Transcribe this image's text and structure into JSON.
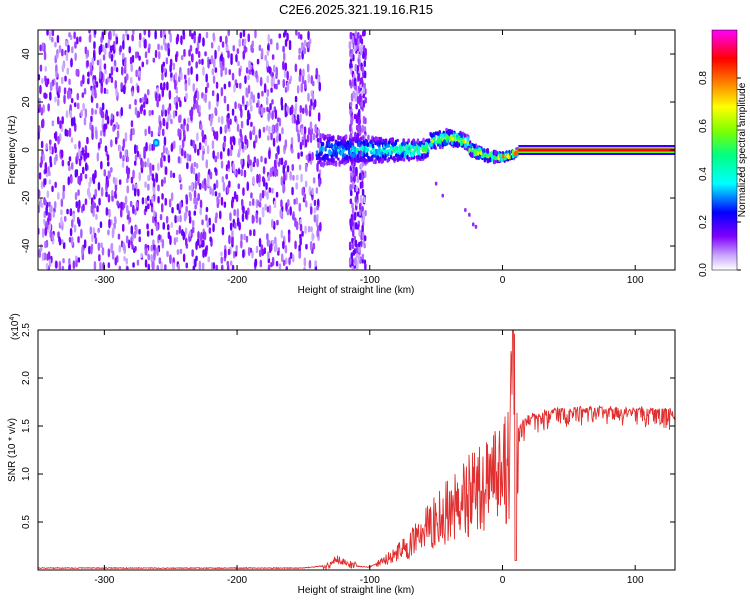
{
  "title": "C2E6.2025.321.19.16.R15",
  "chart_data": [
    {
      "type": "heatmap",
      "name": "spectrogram",
      "xlabel": "Height of straight line (km)",
      "ylabel": "Frequency (Hz)",
      "xlim": [
        -350,
        130
      ],
      "ylim": [
        -50,
        50
      ],
      "xticks": [
        -300,
        -200,
        -100,
        0,
        100
      ],
      "xtick_labels": [
        "-300",
        "-200",
        "-100",
        "0",
        "100"
      ],
      "yticks": [
        -40,
        -20,
        0,
        20,
        40
      ],
      "ytick_labels": [
        "-40",
        "-20",
        "0",
        "20",
        "40"
      ],
      "colorbar": {
        "label": "Normalized spectral amplitude",
        "range": [
          0,
          1
        ],
        "ticks": [
          0.0,
          0.2,
          0.4,
          0.6,
          0.8
        ],
        "tick_labels": [
          "0.0",
          "0.2",
          "0.4",
          "0.6",
          "0.8"
        ],
        "colors": [
          "#ffffff",
          "#8000ff",
          "#0000ff",
          "#00ffff",
          "#00ff00",
          "#ffff00",
          "#ff8000",
          "#ff0000",
          "#ff00ff"
        ]
      },
      "features": {
        "noise_region_x": [
          -350,
          -137
        ],
        "noise_band_x": [
          -115,
          -103
        ],
        "signal_start_x": -140,
        "steady_line_start_x": 12,
        "steady_line_freq": 0
      }
    },
    {
      "type": "line",
      "name": "snr",
      "xlabel": "Height of straight line (km)",
      "ylabel": "SNR (10 * v/v)",
      "multiplier_label": "(x10",
      "multiplier_exponent": "4",
      "xlim": [
        -350,
        130
      ],
      "ylim": [
        0,
        2.5
      ],
      "xticks": [
        -300,
        -200,
        -100,
        0,
        100
      ],
      "xtick_labels": [
        "-300",
        "-200",
        "-100",
        "0",
        "100"
      ],
      "yticks": [
        0.5,
        1.0,
        1.5,
        2.0,
        2.5
      ],
      "ytick_labels": [
        "0.5",
        "1.0",
        "1.5",
        "2.0",
        "2.5"
      ],
      "series": [
        {
          "name": "SNR",
          "color": "#e03030",
          "x": [
            -350,
            -250,
            -150,
            -130,
            -125,
            -120,
            -110,
            -100,
            -90,
            -80,
            -70,
            -60,
            -50,
            -40,
            -30,
            -20,
            -10,
            0,
            5,
            8,
            10,
            12,
            15,
            20,
            30,
            40,
            50,
            60,
            80,
            100,
            120,
            130
          ],
          "y": [
            0.02,
            0.02,
            0.02,
            0.05,
            0.12,
            0.08,
            0.04,
            0.03,
            0.1,
            0.2,
            0.3,
            0.45,
            0.6,
            0.75,
            0.85,
            0.95,
            1.05,
            1.2,
            1.3,
            2.5,
            1.4,
            1.5,
            1.55,
            1.62,
            1.66,
            1.68,
            1.69,
            1.7,
            1.7,
            1.69,
            1.68,
            1.67
          ]
        }
      ]
    }
  ]
}
